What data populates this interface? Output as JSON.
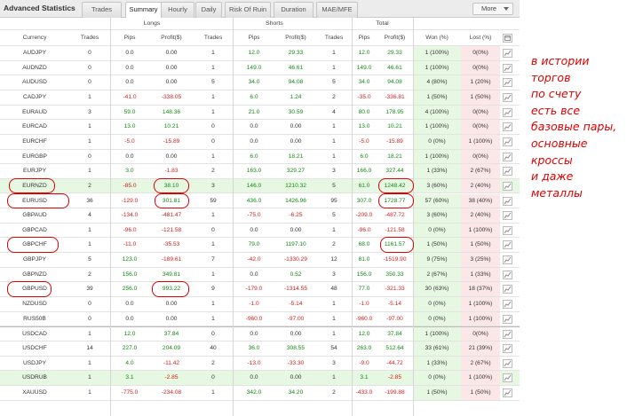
{
  "app_title": "Advanced Statistics",
  "tabs": [
    "Trades",
    "Summary",
    "Hourly",
    "Daily",
    "Risk Of Ruin",
    "Duration",
    "MAE/MFE"
  ],
  "active_tab": "Summary",
  "more_label": "More",
  "group_headers": {
    "longs": "Longs",
    "shorts": "Shorts",
    "total": "Total"
  },
  "columns": [
    "Currency",
    "Trades",
    "Pips",
    "Profit($)",
    "Trades",
    "Pips",
    "Profit($)",
    "Trades",
    "Pips",
    "Profit($)",
    "Won (%)",
    "Lost (%)"
  ],
  "rows": [
    [
      "AUDJPY",
      "0",
      "0.0",
      "0.00",
      "1",
      "12.0",
      "29.33",
      "1",
      "12.0",
      "29.33",
      "1 (100%)",
      "0(0%)"
    ],
    [
      "AUDNZD",
      "0",
      "0.0",
      "0.00",
      "1",
      "149.0",
      "46.61",
      "1",
      "149.0",
      "46.61",
      "1 (100%)",
      "0(0%)"
    ],
    [
      "AUDUSD",
      "0",
      "0.0",
      "0.00",
      "5",
      "34.0",
      "94.08",
      "5",
      "34.0",
      "94.08",
      "4 (80%)",
      "1 (20%)"
    ],
    [
      "CADJPY",
      "1",
      "-41.0",
      "-338.05",
      "1",
      "6.0",
      "1.24",
      "2",
      "-35.0",
      "-336.81",
      "1 (50%)",
      "1 (50%)"
    ],
    [
      "EURAUD",
      "3",
      "59.0",
      "148.36",
      "1",
      "21.0",
      "30.59",
      "4",
      "80.0",
      "178.95",
      "4 (100%)",
      "0(0%)"
    ],
    [
      "EURCAD",
      "1",
      "13.0",
      "10.21",
      "0",
      "0.0",
      "0.00",
      "1",
      "13.0",
      "10.21",
      "1 (100%)",
      "0(0%)"
    ],
    [
      "EURCHF",
      "1",
      "-5.0",
      "-15.89",
      "0",
      "0.0",
      "0.00",
      "1",
      "-5.0",
      "-15.89",
      "0 (0%)",
      "1 (100%)"
    ],
    [
      "EURGBP",
      "0",
      "0.0",
      "0.00",
      "1",
      "6.0",
      "18.21",
      "1",
      "6.0",
      "18.21",
      "1 (100%)",
      "0(0%)"
    ],
    [
      "EURJPY",
      "1",
      "3.0",
      "-1.83",
      "2",
      "163.0",
      "329.27",
      "3",
      "166.0",
      "327.44",
      "1 (33%)",
      "2 (67%)"
    ],
    [
      "EURNZD",
      "2",
      "-85.0",
      "38.10",
      "3",
      "146.0",
      "1210.32",
      "5",
      "61.0",
      "1248.42",
      "3 (60%)",
      "2 (40%)"
    ],
    [
      "EURUSD",
      "36",
      "-129.0",
      "301.81",
      "59",
      "436.0",
      "1426.96",
      "95",
      "307.0",
      "1728.77",
      "57 (60%)",
      "38 (40%)"
    ],
    [
      "GBPAUD",
      "4",
      "-134.0",
      "-481.47",
      "1",
      "-75.0",
      "-6.25",
      "5",
      "-209.0",
      "-487.72",
      "3 (60%)",
      "2 (40%)"
    ],
    [
      "GBPCAD",
      "1",
      "-96.0",
      "-121.58",
      "0",
      "0.0",
      "0.00",
      "1",
      "-96.0",
      "-121.58",
      "0 (0%)",
      "1 (100%)"
    ],
    [
      "GBPCHF",
      "1",
      "-11.0",
      "-35.53",
      "1",
      "79.0",
      "1197.10",
      "2",
      "68.0",
      "1161.57",
      "1 (50%)",
      "1 (50%)"
    ],
    [
      "GBPJPY",
      "5",
      "123.0",
      "-189.61",
      "7",
      "-42.0",
      "-1330.29",
      "12",
      "81.0",
      "-1519.90",
      "9 (75%)",
      "3 (25%)"
    ],
    [
      "GBPNZD",
      "2",
      "156.0",
      "349.81",
      "1",
      "0.0",
      "0.52",
      "3",
      "156.0",
      "350.33",
      "2 (67%)",
      "1 (33%)"
    ],
    [
      "GBPUSD",
      "39",
      "256.0",
      "993.22",
      "9",
      "-179.0",
      "-1314.55",
      "48",
      "77.0",
      "-321.33",
      "30 (63%)",
      "18 (37%)"
    ],
    [
      "NZDUSD",
      "0",
      "0.0",
      "0.00",
      "1",
      "-1.0",
      "-5.14",
      "1",
      "-1.0",
      "-5.14",
      "0 (0%)",
      "1 (100%)"
    ],
    [
      "RUS50B",
      "0",
      "0.0",
      "0.00",
      "1",
      "-960.0",
      "-97.00",
      "1",
      "-960.0",
      "-97.00",
      "0 (0%)",
      "1 (100%)"
    ],
    [
      "USDCAD",
      "1",
      "12.0",
      "37.84",
      "0",
      "0.0",
      "0.00",
      "1",
      "12.0",
      "37.84",
      "1 (100%)",
      "0(0%)"
    ],
    [
      "USDCHF",
      "14",
      "227.0",
      "204.09",
      "40",
      "36.0",
      "308.55",
      "54",
      "263.0",
      "512.64",
      "33 (61%)",
      "21 (39%)"
    ],
    [
      "USDJPY",
      "1",
      "4.0",
      "-11.42",
      "2",
      "-13.0",
      "-33.30",
      "3",
      "-9.0",
      "-44.72",
      "1 (33%)",
      "2 (67%)"
    ],
    [
      "USDRUB",
      "1",
      "3.1",
      "-2.85",
      "0",
      "0.0",
      "0.00",
      "1",
      "3.1",
      "-2.85",
      "0 (0%)",
      "1 (100%)"
    ],
    [
      "XAUUSD",
      "1",
      "-775.0",
      "-234.08",
      "1",
      "342.0",
      "34.20",
      "2",
      "-433.0",
      "-199.88",
      "1 (50%)",
      "1 (50%)"
    ]
  ],
  "highlighted_rows": [
    "EURNZD",
    "USDRUB"
  ],
  "colors": {
    "positive": "#138a13",
    "negative": "#d62020",
    "won_bg": "#e6f7e2",
    "lost_bg": "#fbe7e7",
    "annotation": "#e00000"
  },
  "icons": {
    "row_action": "chart-icon",
    "header_action": "window-icon"
  },
  "annotation_lines": [
    "в истории",
    "торгов",
    "по счету",
    "есть все",
    "базовые пары,",
    "основные",
    "кроссы",
    "и даже",
    "металлы"
  ]
}
